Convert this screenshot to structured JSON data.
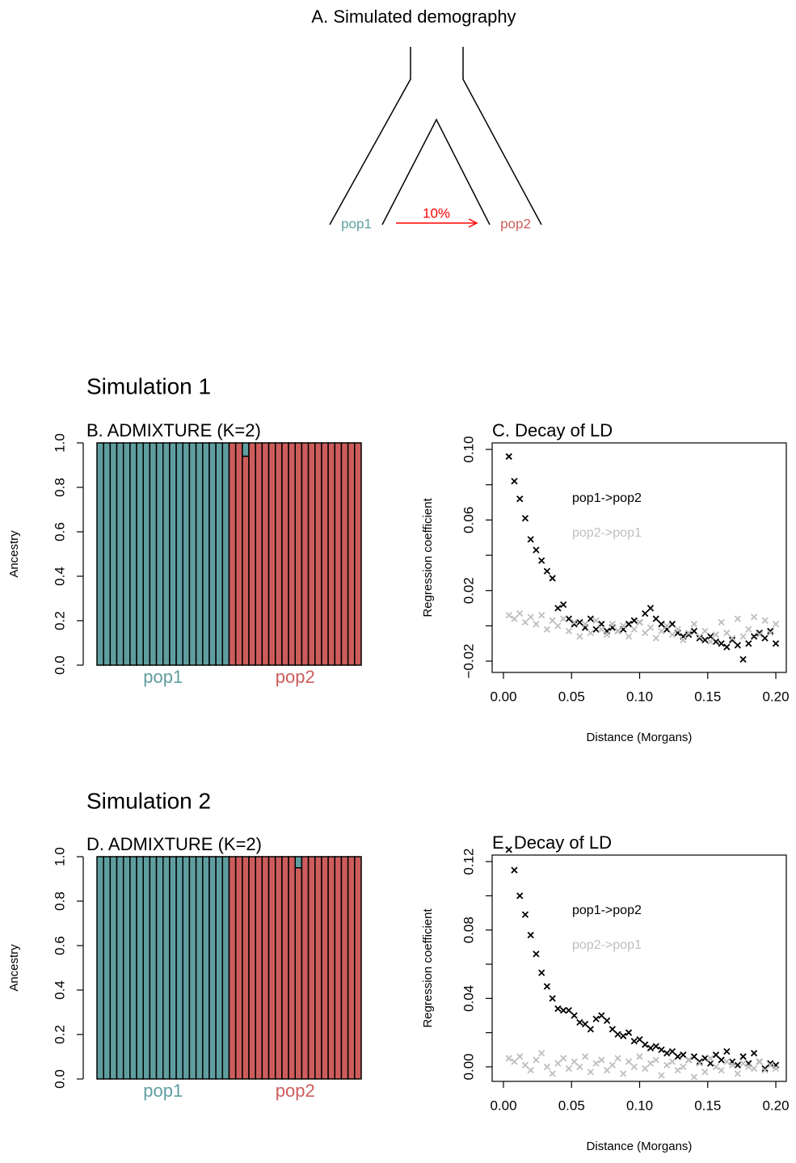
{
  "demography": {
    "title": "A. Simulated demography",
    "source": "pop1",
    "target": "pop2",
    "migration": "10%",
    "source_color": "#5f9ea0",
    "target_color": "#cd5c5c",
    "migration_color": "#ff0000"
  },
  "sections": [
    "Simulation 1",
    "Simulation 2"
  ],
  "chart_data": [
    {
      "type": "bar",
      "stacked": true,
      "title": "B. ADMIXTURE (K=2)",
      "ylabel": "Ancestry",
      "ylim": [
        0,
        1
      ],
      "yticks": [
        {
          "value": 0,
          "label": "0.0"
        },
        0.2,
        0.4,
        0.6,
        0.8,
        {
          "value": 1,
          "label": "1.0"
        }
      ],
      "groups": [
        {
          "label": "pop1",
          "color": "#5f9ea0"
        },
        {
          "label": "pop2",
          "color": "#cd5c5c"
        }
      ],
      "series": [
        {
          "color": "#cd5c5c",
          "values": [
            0,
            0,
            0,
            0,
            0,
            0,
            0,
            0,
            0,
            0,
            0,
            0,
            0,
            0,
            0,
            0,
            0,
            0,
            0,
            0,
            1,
            1,
            0.94,
            1,
            1,
            1,
            1,
            1,
            1,
            1,
            1,
            1,
            1,
            1,
            1,
            1,
            1,
            1,
            1,
            1
          ]
        },
        {
          "color": "#5f9ea0",
          "values": [
            1,
            1,
            1,
            1,
            1,
            1,
            1,
            1,
            1,
            1,
            1,
            1,
            1,
            1,
            1,
            1,
            1,
            1,
            1,
            1,
            0,
            0,
            0.06,
            0,
            0,
            0,
            0,
            0,
            0,
            0,
            0,
            0,
            0,
            0,
            0,
            0,
            0,
            0,
            0,
            0
          ]
        }
      ]
    },
    {
      "type": "scatter",
      "title": "C. Decay of LD",
      "xlabel": "Distance (Morgans)",
      "ylabel": "Regression coefficient",
      "xlim": [
        -0.0083,
        0.2077
      ],
      "ylim": [
        -0.0264,
        0.1037
      ],
      "xticks": [
        {
          "value": 0,
          "label": "0.00"
        },
        0.05,
        {
          "value": 0.1,
          "label": "0.10"
        },
        0.15,
        {
          "value": 0.2,
          "label": "0.20"
        }
      ],
      "yticks": [
        {
          "value": -0.02,
          "label": "−0.02"
        },
        0.02,
        0.06,
        {
          "value": 0.1,
          "label": "0.10"
        }
      ],
      "yminor_ticks": [
        0,
        0.04,
        0.08
      ],
      "x": [
        0.004,
        0.008,
        0.012,
        0.016,
        0.02,
        0.024,
        0.028,
        0.032,
        0.036,
        0.04,
        0.044,
        0.048,
        0.052,
        0.056,
        0.06,
        0.064,
        0.068,
        0.072,
        0.076,
        0.08,
        0.084,
        0.088,
        0.092,
        0.096,
        0.1,
        0.104,
        0.108,
        0.112,
        0.116,
        0.12,
        0.124,
        0.128,
        0.132,
        0.136,
        0.14,
        0.144,
        0.148,
        0.152,
        0.156,
        0.16,
        0.164,
        0.168,
        0.172,
        0.176,
        0.18,
        0.184,
        0.188,
        0.192,
        0.196,
        0.2
      ],
      "series": [
        {
          "name": "pop1->pop2",
          "color": "#000000",
          "values": [
            0.096,
            0.082,
            0.072,
            0.061,
            0.049,
            0.043,
            0.037,
            0.031,
            0.027,
            0.01,
            0.012,
            0.004,
            0.001,
            0.002,
            -0.001,
            0.004,
            -0.002,
            0.001,
            -0.003,
            -0.001,
            -0.003,
            -0.002,
            0.001,
            0.003,
            0.002,
            0.007,
            0.01,
            0.004,
            0.001,
            -0.002,
            0.001,
            -0.004,
            -0.006,
            -0.005,
            -0.003,
            -0.007,
            -0.008,
            -0.006,
            -0.009,
            -0.01,
            -0.012,
            -0.008,
            -0.011,
            -0.019,
            -0.01,
            -0.006,
            -0.004,
            -0.007,
            -0.003,
            -0.01
          ]
        },
        {
          "name": "pop2->pop1",
          "color": "#bebebe",
          "values": [
            0.006,
            0.004,
            0.007,
            0.002,
            0.005,
            0.001,
            0.006,
            -0.002,
            0.003,
            0,
            0.004,
            -0.003,
            0.002,
            -0.006,
            0.001,
            -0.004,
            0.003,
            -0.002,
            -0.005,
            0.001,
            -0.003,
            0,
            -0.006,
            -0.002,
            0.002,
            -0.004,
            -0.001,
            -0.007,
            -0.003,
            0,
            -0.005,
            -0.002,
            -0.008,
            -0.004,
            0.001,
            -0.006,
            -0.003,
            -0.009,
            -0.005,
            0.002,
            -0.004,
            -0.007,
            0.004,
            -0.006,
            -0.002,
            0.005,
            -0.005,
            0.003,
            -0.004,
            0.001
          ]
        }
      ]
    },
    {
      "type": "bar",
      "stacked": true,
      "title": "D. ADMIXTURE (K=2)",
      "ylabel": "Ancestry",
      "ylim": [
        0,
        1
      ],
      "yticks": [
        {
          "value": 0,
          "label": "0.0"
        },
        0.2,
        0.4,
        0.6,
        0.8,
        {
          "value": 1,
          "label": "1.0"
        }
      ],
      "groups": [
        {
          "label": "pop1",
          "color": "#5f9ea0"
        },
        {
          "label": "pop2",
          "color": "#cd5c5c"
        }
      ],
      "series": [
        {
          "color": "#cd5c5c",
          "values": [
            0,
            0,
            0,
            0,
            0,
            0,
            0,
            0,
            0,
            0,
            0,
            0,
            0,
            0,
            0,
            0,
            0,
            0,
            0,
            0,
            1,
            1,
            1,
            1,
            1,
            1,
            1,
            1,
            1,
            1,
            0.95,
            1,
            1,
            1,
            1,
            1,
            1,
            1,
            1,
            1
          ]
        },
        {
          "color": "#5f9ea0",
          "values": [
            1,
            1,
            1,
            1,
            1,
            1,
            1,
            1,
            1,
            1,
            1,
            1,
            1,
            1,
            1,
            1,
            1,
            1,
            1,
            1,
            0,
            0,
            0,
            0,
            0,
            0,
            0,
            0,
            0,
            0,
            0.05,
            0,
            0,
            0,
            0,
            0,
            0,
            0,
            0,
            0
          ]
        }
      ]
    },
    {
      "type": "scatter",
      "title": "E. Decay of LD",
      "xlabel": "Distance (Morgans)",
      "ylabel": "Regression coefficient",
      "xlim": [
        -0.0083,
        0.2077
      ],
      "ylim": [
        -0.0085,
        0.1238
      ],
      "xticks": [
        {
          "value": 0,
          "label": "0.00"
        },
        0.05,
        {
          "value": 0.1,
          "label": "0.10"
        },
        0.15,
        {
          "value": 0.2,
          "label": "0.20"
        }
      ],
      "yticks": [
        {
          "value": 0,
          "label": "0.00"
        },
        0.04,
        0.08,
        0.12
      ],
      "yminor_ticks": [
        0.02,
        0.06,
        0.1
      ],
      "x": [
        0.004,
        0.008,
        0.012,
        0.016,
        0.02,
        0.024,
        0.028,
        0.032,
        0.036,
        0.04,
        0.044,
        0.048,
        0.052,
        0.056,
        0.06,
        0.064,
        0.068,
        0.072,
        0.076,
        0.08,
        0.084,
        0.088,
        0.092,
        0.096,
        0.1,
        0.104,
        0.108,
        0.112,
        0.116,
        0.12,
        0.124,
        0.128,
        0.132,
        0.136,
        0.14,
        0.144,
        0.148,
        0.152,
        0.156,
        0.16,
        0.164,
        0.168,
        0.172,
        0.176,
        0.18,
        0.184,
        0.188,
        0.192,
        0.196,
        0.2
      ],
      "series": [
        {
          "name": "pop1->pop2",
          "color": "#000000",
          "values": [
            0.127,
            0.115,
            0.1,
            0.089,
            0.077,
            0.066,
            0.055,
            0.047,
            0.04,
            0.034,
            0.033,
            0.033,
            0.03,
            0.026,
            0.025,
            0.022,
            0.028,
            0.03,
            0.027,
            0.022,
            0.019,
            0.018,
            0.02,
            0.015,
            0.016,
            0.013,
            0.011,
            0.012,
            0.01,
            0.008,
            0.009,
            0.006,
            0.007,
            0.004,
            0.006,
            0.003,
            0.005,
            0.002,
            0.007,
            0.004,
            0.009,
            0.003,
            0.001,
            0.006,
            0.002,
            0.008,
            0.003,
            -0.001,
            0.002,
            0.001
          ]
        },
        {
          "name": "pop2->pop1",
          "color": "#bebebe",
          "values": [
            0.005,
            0.003,
            0.006,
            0.001,
            -0.002,
            0.004,
            0.008,
            0,
            -0.004,
            0.002,
            0.005,
            -0.001,
            0.003,
            0,
            0.006,
            -0.003,
            0.002,
            0.004,
            -0.002,
            0.001,
            0.005,
            -0.004,
            0.003,
            0,
            0.006,
            -0.001,
            0.002,
            0.004,
            -0.005,
            0.001,
            0.003,
            -0.002,
            0,
            0.004,
            -0.006,
            0.002,
            -0.003,
            0.005,
            0,
            -0.002,
            0.003,
            0.001,
            -0.004,
            0.002,
            0,
            -0.001,
            0.003,
            -0.002,
            0.001,
            -0.001
          ]
        }
      ]
    }
  ]
}
